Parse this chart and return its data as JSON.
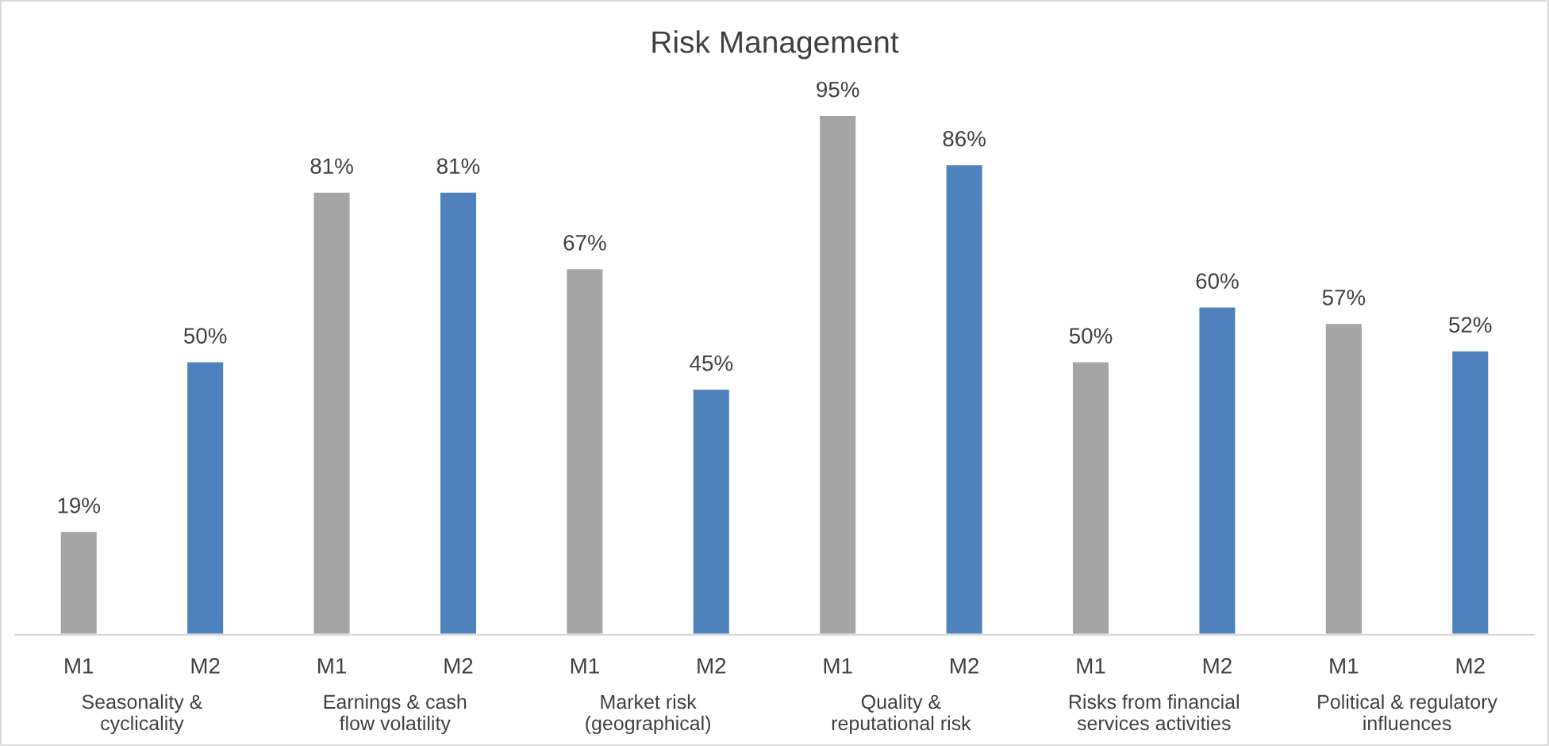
{
  "chart_data": {
    "type": "bar",
    "title": "Risk Management",
    "categories": [
      "Seasonality &\ncyclicality",
      "Earnings & cash\nflow volatility",
      "Market risk\n(geographical)",
      "Quality &\nreputational risk",
      "Risks from financial\nservices activities",
      "Political & regulatory\ninfluences"
    ],
    "series": [
      {
        "name": "M1",
        "color": "#a5a5a5",
        "values": [
          19,
          81,
          67,
          95,
          50,
          57
        ],
        "value_labels": [
          "19%",
          "81%",
          "67%",
          "95%",
          "50%",
          "57%"
        ]
      },
      {
        "name": "M2",
        "color": "#4f81bd",
        "values": [
          50,
          81,
          45,
          86,
          60,
          52
        ],
        "value_labels": [
          "50%",
          "81%",
          "45%",
          "86%",
          "60%",
          "52%"
        ]
      }
    ],
    "legend": false
  }
}
